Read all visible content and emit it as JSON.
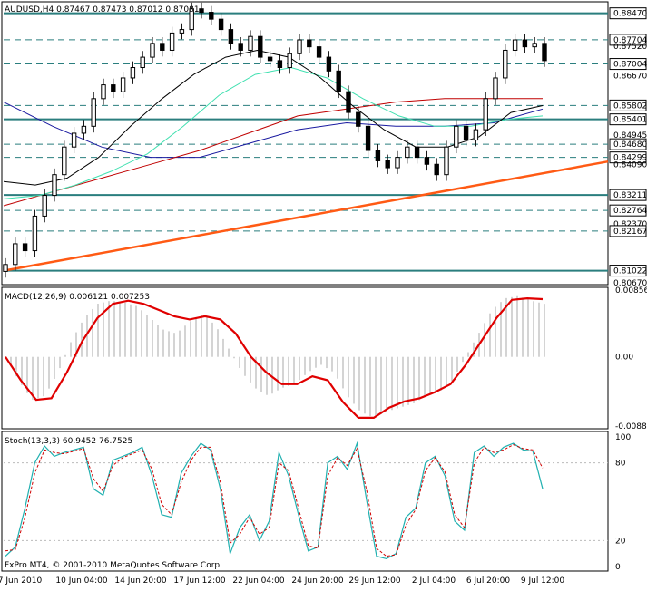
{
  "window": {
    "main_title": "AUDUSD,H4  0.87467 0.87473 0.87012 0.87081",
    "macd_title": "MACD(12,26,9) 0.006121 0.007253",
    "stoch_title": "Stoch(13,3,3) 60.9452 76.7525",
    "footer": "FxPro MT4, © 2001-2010 MetaQuotes Software Corp."
  },
  "colors": {
    "level_line": "#2a7e7e",
    "trend_line": "#ff5a14",
    "ma_black": "#000000",
    "ma_aqua": "#40e0b0",
    "ma_red": "#c00000",
    "ma_blue": "#1a1aa0",
    "macd_hist": "#bdbdbd",
    "macd_signal": "#e00000",
    "stoch_main": "#20b0b0",
    "stoch_signal": "#d00000"
  },
  "chart_data": [
    {
      "type": "candlestick",
      "symbol": "AUDUSD",
      "timeframe": "H4",
      "ylim": [
        0.8067,
        0.8875
      ],
      "price_axis_labels": [
        "0.88470",
        "0.87704",
        "0.87520",
        "0.87004",
        "0.86670",
        "0.85802",
        "0.85401",
        "0.84945",
        "0.84680",
        "0.84299",
        "0.84090",
        "0.83211",
        "0.82764",
        "0.82370",
        "0.82167",
        "0.81022",
        "0.80670"
      ],
      "x_labels": [
        "7 Jun 2010",
        "10 Jun 04:00",
        "14 Jun 20:00",
        "17 Jun 12:00",
        "22 Jun 04:00",
        "24 Jun 20:00",
        "29 Jun 12:00",
        "2 Jul 04:00",
        "6 Jul 20:00",
        "9 Jul 12:00"
      ],
      "levels_solid": [
        0.8847,
        0.85401,
        0.83211,
        0.81022
      ],
      "levels_dashed": [
        0.87704,
        0.87004,
        0.85802,
        0.8468,
        0.84299,
        0.82764,
        0.82167
      ],
      "close_path": [
        0.812,
        0.818,
        0.816,
        0.826,
        0.832,
        0.838,
        0.846,
        0.85,
        0.852,
        0.86,
        0.864,
        0.862,
        0.866,
        0.869,
        0.872,
        0.876,
        0.874,
        0.879,
        0.88,
        0.886,
        0.885,
        0.883,
        0.88,
        0.876,
        0.874,
        0.878,
        0.872,
        0.871,
        0.869,
        0.873,
        0.877,
        0.875,
        0.872,
        0.868,
        0.862,
        0.856,
        0.852,
        0.845,
        0.842,
        0.84,
        0.843,
        0.846,
        0.843,
        0.841,
        0.838,
        0.846,
        0.852,
        0.848,
        0.851,
        0.86,
        0.866,
        0.874,
        0.877,
        0.875,
        0.876,
        0.871
      ],
      "ma_black": [
        0.836,
        0.835,
        0.837,
        0.843,
        0.852,
        0.86,
        0.867,
        0.872,
        0.874,
        0.872,
        0.866,
        0.858,
        0.851,
        0.846,
        0.846,
        0.849,
        0.856,
        0.858
      ],
      "ma_aqua": [
        0.831,
        0.832,
        0.835,
        0.839,
        0.844,
        0.852,
        0.861,
        0.867,
        0.869,
        0.866,
        0.86,
        0.855,
        0.852,
        0.852,
        0.854,
        0.855
      ],
      "ma_red": [
        0.829,
        0.833,
        0.837,
        0.841,
        0.845,
        0.85,
        0.855,
        0.857,
        0.859,
        0.86,
        0.86,
        0.86
      ],
      "ma_blue": [
        0.859,
        0.852,
        0.846,
        0.843,
        0.843,
        0.847,
        0.851,
        0.853,
        0.852,
        0.852,
        0.853,
        0.857
      ],
      "trendline": [
        0.8102,
        0.8418
      ]
    },
    {
      "type": "macd",
      "ylim": [
        -0.00886,
        0.00856
      ],
      "y_labels": [
        "0.00856",
        "0.00",
        "-0.00886"
      ],
      "macd_values": [
        0.0,
        -0.003,
        -0.0055,
        -0.005,
        -0.002,
        0.002,
        0.005,
        0.0068,
        0.0072,
        0.007,
        0.0065,
        0.005,
        0.0035,
        0.003,
        0.0045,
        0.0055,
        0.004,
        0.001,
        -0.002,
        -0.004,
        -0.005,
        -0.004,
        -0.0035,
        -0.002,
        -0.001,
        -0.002,
        -0.005,
        -0.007,
        -0.0078,
        -0.007,
        -0.0065,
        -0.006,
        -0.005,
        -0.0045,
        -0.003,
        0.0,
        0.003,
        0.006,
        0.0075,
        0.0078,
        0.0072,
        0.0068
      ],
      "signal": [
        0.0,
        -0.003,
        -0.0055,
        -0.0053,
        -0.002,
        0.002,
        0.005,
        0.0068,
        0.0072,
        0.0068,
        0.006,
        0.0052,
        0.0048,
        0.0052,
        0.0048,
        0.003,
        0.0,
        -0.002,
        -0.0035,
        -0.0035,
        -0.0025,
        -0.003,
        -0.0058,
        -0.0078,
        -0.0078,
        -0.0065,
        -0.0057,
        -0.0053,
        -0.0045,
        -0.0035,
        -0.001,
        0.002,
        0.005,
        0.0073,
        0.0075,
        0.0074
      ]
    },
    {
      "type": "stochastic",
      "ylim": [
        0,
        100
      ],
      "y_labels": [
        "100",
        "80",
        "20",
        "0"
      ],
      "main": [
        8,
        15,
        45,
        80,
        93,
        85,
        88,
        90,
        92,
        60,
        55,
        82,
        85,
        88,
        92,
        70,
        40,
        38,
        72,
        85,
        95,
        90,
        60,
        10,
        30,
        40,
        20,
        35,
        88,
        70,
        40,
        12,
        15,
        80,
        85,
        75,
        95,
        50,
        8,
        6,
        10,
        38,
        45,
        80,
        85,
        70,
        35,
        28,
        88,
        93,
        85,
        92,
        95,
        90,
        89,
        60
      ],
      "signal": [
        12,
        13,
        38,
        72,
        90,
        88,
        87,
        89,
        91,
        68,
        58,
        78,
        84,
        87,
        90,
        75,
        48,
        40,
        65,
        82,
        92,
        92,
        65,
        18,
        25,
        38,
        25,
        30,
        80,
        74,
        45,
        16,
        14,
        70,
        84,
        78,
        91,
        58,
        14,
        8,
        9,
        32,
        44,
        74,
        84,
        73,
        40,
        30,
        80,
        92,
        88,
        90,
        94,
        91,
        90,
        76
      ]
    }
  ]
}
